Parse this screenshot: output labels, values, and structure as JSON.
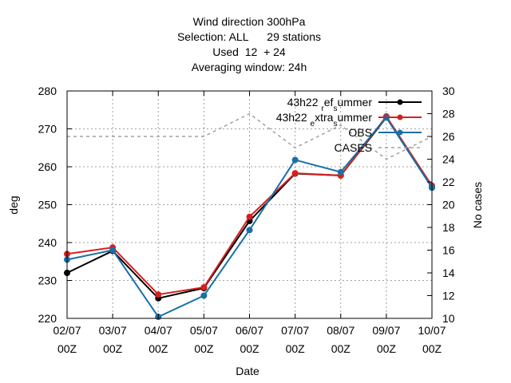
{
  "chart_data": {
    "type": "line",
    "title": [
      "Wind direction 300hPa",
      "Selection: ALL      29 stations",
      "Used  12  + 24",
      "Averaging window: 24h"
    ],
    "xlabel": "Date",
    "ylabel": "deg",
    "y2label": "No cases",
    "categories": [
      [
        "02/07",
        "00Z"
      ],
      [
        "03/07",
        "00Z"
      ],
      [
        "04/07",
        "00Z"
      ],
      [
        "05/07",
        "00Z"
      ],
      [
        "06/07",
        "00Z"
      ],
      [
        "07/07",
        "00Z"
      ],
      [
        "08/07",
        "00Z"
      ],
      [
        "09/07",
        "00Z"
      ],
      [
        "10/07",
        "00Z"
      ]
    ],
    "ylim": [
      220,
      280
    ],
    "yticks": [
      220,
      230,
      240,
      250,
      260,
      270,
      280
    ],
    "y2lim": [
      10,
      30
    ],
    "y2ticks": [
      10,
      12,
      14,
      16,
      18,
      20,
      22,
      24,
      26,
      28,
      30
    ],
    "grid": true,
    "legend_position": "top-right",
    "series": [
      {
        "name": "43h22_ref_summer",
        "legend": {
          "base": "43h22",
          "parts": [
            [
              "",
              "r"
            ],
            [
              "ef",
              "s"
            ],
            [
              "ummer",
              ""
            ]
          ]
        },
        "color": "#000000",
        "axis": "y",
        "style": "line-points",
        "values": [
          232.0,
          237.8,
          225.3,
          228.0,
          245.7,
          258.2,
          257.7,
          273.0,
          254.5
        ]
      },
      {
        "name": "43h22_extra_summer",
        "legend": {
          "base": "43h22",
          "parts": [
            [
              "",
              "e"
            ],
            [
              "xtra",
              "s"
            ],
            [
              "ummer",
              ""
            ]
          ]
        },
        "color": "#d62020",
        "axis": "y",
        "style": "line-points",
        "values": [
          237.0,
          238.7,
          226.3,
          228.2,
          246.8,
          258.3,
          257.7,
          273.3,
          255.0
        ]
      },
      {
        "name": "OBS",
        "color": "#1a6fa8",
        "axis": "y",
        "style": "line-points",
        "values": [
          235.5,
          238.0,
          220.4,
          226.0,
          243.3,
          261.8,
          258.6,
          273.0,
          254.5
        ]
      },
      {
        "name": "CASES",
        "color": "#a0a0a0",
        "axis": "y2",
        "style": "dashed",
        "values": [
          26,
          26,
          26,
          26,
          28,
          25,
          27,
          24,
          26
        ]
      }
    ]
  }
}
